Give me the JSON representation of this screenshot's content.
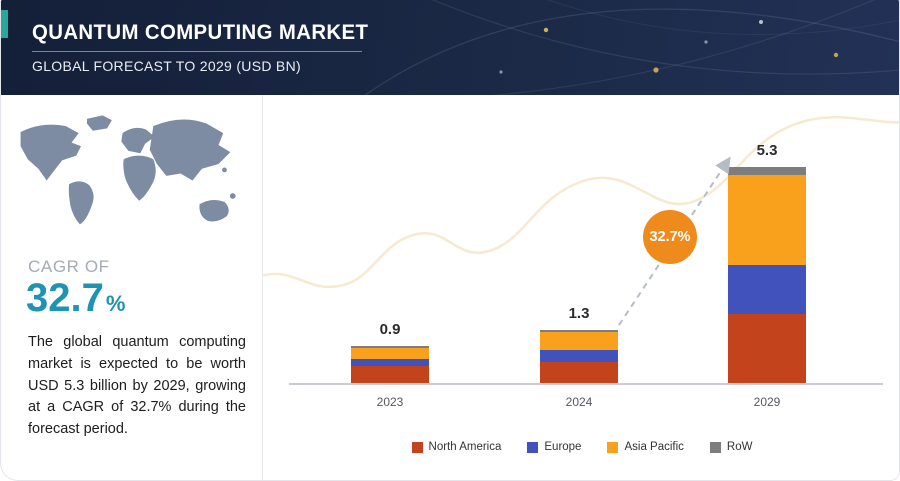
{
  "header": {
    "title": "QUANTUM COMPUTING MARKET",
    "subtitle": "GLOBAL FORECAST TO 2029 (USD BN)"
  },
  "sidebar": {
    "map_graphic": "world-map-silhouette",
    "cagr_label": "CAGR OF",
    "cagr_value": "32.7",
    "cagr_unit": "%",
    "description": "The global quantum computing market is expected to be worth USD 5.3 billion by 2029, growing at a CAGR of 32.7% during the forecast period."
  },
  "colors": {
    "header_navy": "#1b2946",
    "accent_teal": "#1e93b2",
    "badge_orange": "#ef8b1c"
  },
  "chart_data": {
    "type": "bar",
    "stacked": true,
    "title": "Quantum Computing Market, Global Forecast to 2029 (USD BN)",
    "categories": [
      "2023",
      "2024",
      "2029"
    ],
    "series": [
      {
        "name": "North America",
        "color": "#c2431c",
        "values": [
          0.42,
          0.52,
          1.7
        ]
      },
      {
        "name": "Europe",
        "color": "#4152bc",
        "values": [
          0.16,
          0.28,
          1.2
        ]
      },
      {
        "name": "Asia Pacific",
        "color": "#f9a11c",
        "values": [
          0.27,
          0.45,
          2.2
        ]
      },
      {
        "name": "RoW",
        "color": "#7d7d7d",
        "values": [
          0.05,
          0.05,
          0.2
        ]
      }
    ],
    "totals": [
      "0.9",
      "1.3",
      "5.3"
    ],
    "growth_badge": "32.7%",
    "ylim": [
      0,
      5.8
    ],
    "grid": false,
    "legend_position": "bottom"
  }
}
